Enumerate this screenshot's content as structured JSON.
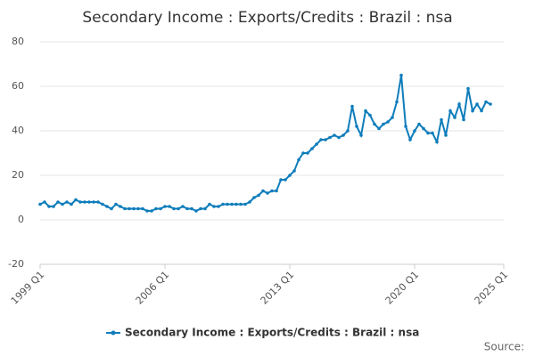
{
  "chart_data": {
    "type": "line",
    "title": "Secondary Income : Exports/Credits : Brazil : nsa",
    "source": "Source:",
    "x": [
      1999,
      1999.25,
      1999.5,
      1999.75,
      2000,
      2000.25,
      2000.5,
      2000.75,
      2001,
      2001.25,
      2001.5,
      2001.75,
      2002,
      2002.25,
      2002.5,
      2002.75,
      2003,
      2003.25,
      2003.5,
      2003.75,
      2004,
      2004.25,
      2004.5,
      2004.75,
      2005,
      2005.25,
      2005.5,
      2005.75,
      2006,
      2006.25,
      2006.5,
      2006.75,
      2007,
      2007.25,
      2007.5,
      2007.75,
      2008,
      2008.25,
      2008.5,
      2008.75,
      2009,
      2009.25,
      2009.5,
      2009.75,
      2010,
      2010.25,
      2010.5,
      2010.75,
      2011,
      2011.25,
      2011.5,
      2011.75,
      2012,
      2012.25,
      2012.5,
      2012.75,
      2013,
      2013.25,
      2013.5,
      2013.75,
      2014,
      2014.25,
      2014.5,
      2014.75,
      2015,
      2015.25,
      2015.5,
      2015.75,
      2016,
      2016.25,
      2016.5,
      2016.75,
      2017,
      2017.25,
      2017.5,
      2017.75,
      2018,
      2018.25,
      2018.5,
      2018.75,
      2019,
      2019.25,
      2019.5,
      2019.75,
      2020,
      2020.25,
      2020.5,
      2020.75,
      2021,
      2021.25,
      2021.5,
      2021.75,
      2022,
      2022.25,
      2022.5,
      2022.75,
      2023,
      2023.25,
      2023.5,
      2023.75,
      2024,
      2024.25
    ],
    "series": [
      {
        "name": "Secondary Income : Exports/Credits : Brazil : nsa",
        "color": "#0f7dbb",
        "values": [
          7,
          8,
          6,
          6,
          8,
          7,
          8,
          7,
          9,
          8,
          8,
          8,
          8,
          8,
          7,
          6,
          5,
          7,
          6,
          5,
          5,
          5,
          5,
          5,
          4,
          4,
          5,
          5,
          6,
          6,
          5,
          5,
          6,
          5,
          5,
          4,
          5,
          5,
          7,
          6,
          6,
          7,
          7,
          7,
          7,
          7,
          7,
          8,
          10,
          11,
          13,
          12,
          13,
          13,
          18,
          18,
          20,
          22,
          27,
          30,
          30,
          32,
          34,
          36,
          36,
          37,
          38,
          37,
          38,
          40,
          51,
          42,
          38,
          49,
          47,
          43,
          41,
          43,
          44,
          46,
          53,
          65,
          42,
          36,
          40,
          43,
          41,
          39,
          39,
          35,
          45,
          38,
          49,
          46,
          52,
          45,
          59,
          49,
          52,
          49,
          53,
          52
        ]
      }
    ],
    "xlim": [
      1999,
      2025
    ],
    "xticks": [
      {
        "value": 1999,
        "label": "1999 Q1"
      },
      {
        "value": 2006,
        "label": "2006 Q1"
      },
      {
        "value": 2013,
        "label": "2013 Q1"
      },
      {
        "value": 2020,
        "label": "2020 Q1"
      },
      {
        "value": 2025,
        "label": "2025 Q1"
      }
    ],
    "ylim": [
      -20,
      80
    ],
    "yticks": [
      -20,
      0,
      20,
      40,
      60,
      80
    ],
    "grid": true
  }
}
